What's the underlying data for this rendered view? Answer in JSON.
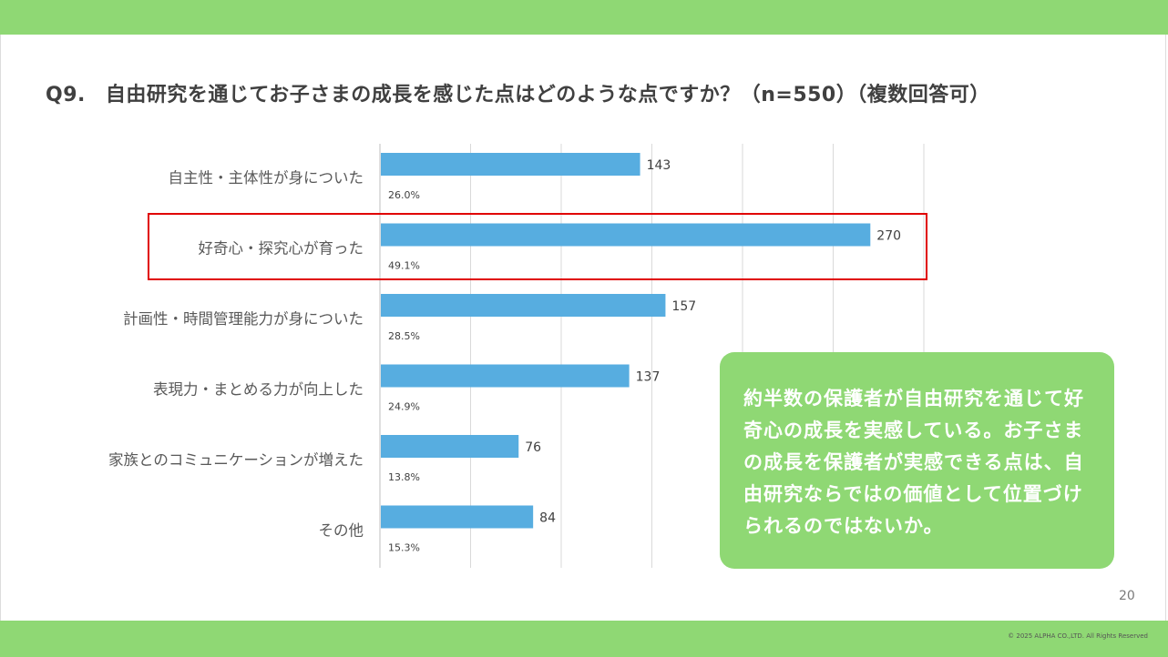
{
  "page": {
    "page_number": "20",
    "copyright": "© 2025 ALPHA CO.,LTD. All Rights Reserved",
    "accent_color": "#8fd874",
    "highlight_color": "#e00000"
  },
  "chart_data": {
    "type": "bar",
    "orientation": "horizontal",
    "title_number": "Q9.",
    "title": "自由研究を通じてお子さまの成長を感じた点はどのような点ですか？（n=550）（複数回答可）",
    "categories": [
      "自主性・主体性が身についた",
      "好奇心・探究心が育った",
      "計画性・時間管理能力が身についた",
      "表現力・まとめる力が向上した",
      "家族とのコミュニケーションが増えた",
      "その他"
    ],
    "values": [
      143,
      270,
      157,
      137,
      76,
      84
    ],
    "percentages": [
      "26.0%",
      "49.1%",
      "28.5%",
      "24.9%",
      "13.8%",
      "15.3%"
    ],
    "xlim": [
      0,
      300
    ],
    "grid": true,
    "bar_color": "#57ade0",
    "highlighted_category": "好奇心・探究心が育った"
  },
  "callout": {
    "text": "約半数の保護者が自由研究を通じて好奇心の成長を実感している。お子さまの成長を保護者が実感できる点は、自由研究ならではの価値として位置づけられるのではないか。"
  }
}
